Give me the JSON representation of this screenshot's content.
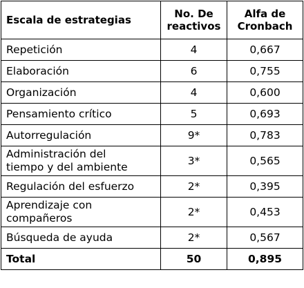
{
  "table": {
    "headers": {
      "scale": "Escala de estrategias",
      "items": [
        "No. De",
        "reactivos"
      ],
      "alpha": [
        "Alfa de",
        "Cronbach"
      ]
    },
    "rows": [
      {
        "scale": "Repetición",
        "items": "4",
        "alpha": "0,667"
      },
      {
        "scale": "Elaboración",
        "items": "6",
        "alpha": "0,755"
      },
      {
        "scale": "Organización",
        "items": "4",
        "alpha": "0,600"
      },
      {
        "scale": "Pensamiento crítico",
        "items": "5",
        "alpha": "0,693"
      },
      {
        "scale": "Autorregulación",
        "items": "9*",
        "alpha": "0,783"
      },
      {
        "scale": [
          "Administración del",
          "tiempo y del ambiente"
        ],
        "items": "3*",
        "alpha": "0,565"
      },
      {
        "scale": "Regulación del esfuerzo",
        "items": "2*",
        "alpha": "0,395"
      },
      {
        "scale": [
          "Aprendizaje con",
          "compañeros"
        ],
        "items": "2*",
        "alpha": "0,453"
      },
      {
        "scale": "Búsqueda de ayuda",
        "items": "2*",
        "alpha": "0,567"
      }
    ],
    "total": {
      "scale": "Total",
      "items": "50",
      "alpha": "0,895"
    }
  }
}
